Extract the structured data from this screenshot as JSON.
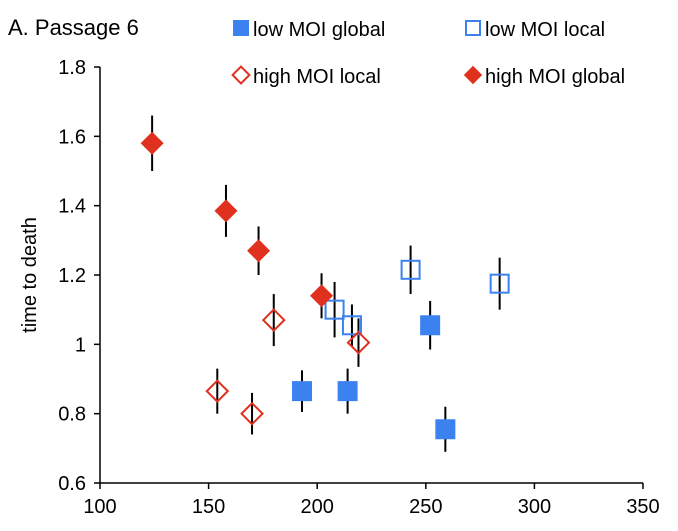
{
  "chart_data": {
    "type": "scatter",
    "title": "A.  Passage 6",
    "xlabel": "",
    "ylabel": "time to death",
    "xlim": [
      100,
      350
    ],
    "ylim": [
      0.6,
      1.8
    ],
    "xticks": [
      "100",
      "150",
      "200",
      "250",
      "300",
      "350"
    ],
    "yticks": [
      "0.6",
      "0.8",
      "1",
      "1.2",
      "1.4",
      "1.6",
      "1.8"
    ],
    "grid": false,
    "legend_position": "top",
    "series": [
      {
        "name": "low MOI global",
        "marker": "square-filled",
        "color": "#3b82f0",
        "points": [
          {
            "x": 193,
            "y": 0.865,
            "err": 0.06
          },
          {
            "x": 214,
            "y": 0.865,
            "err": 0.065
          },
          {
            "x": 252,
            "y": 1.055,
            "err": 0.07
          },
          {
            "x": 259,
            "y": 0.755,
            "err": 0.065
          }
        ]
      },
      {
        "name": "low MOI local",
        "marker": "square-open",
        "color": "#3b82f0",
        "points": [
          {
            "x": 208,
            "y": 1.1,
            "err": 0.08
          },
          {
            "x": 216,
            "y": 1.055,
            "err": 0.06
          },
          {
            "x": 243,
            "y": 1.215,
            "err": 0.07
          },
          {
            "x": 284,
            "y": 1.175,
            "err": 0.075
          }
        ]
      },
      {
        "name": "high MOI local",
        "marker": "diamond-open",
        "color": "#e0301e",
        "points": [
          {
            "x": 154,
            "y": 0.865,
            "err": 0.065
          },
          {
            "x": 170,
            "y": 0.8,
            "err": 0.06
          },
          {
            "x": 180,
            "y": 1.07,
            "err": 0.075
          },
          {
            "x": 219,
            "y": 1.005,
            "err": 0.07
          }
        ]
      },
      {
        "name": "high MOI global",
        "marker": "diamond-filled",
        "color": "#e0301e",
        "points": [
          {
            "x": 124,
            "y": 1.58,
            "err": 0.08
          },
          {
            "x": 158,
            "y": 1.385,
            "err": 0.075
          },
          {
            "x": 173,
            "y": 1.27,
            "err": 0.07
          },
          {
            "x": 202,
            "y": 1.14,
            "err": 0.065
          }
        ]
      }
    ],
    "legend": [
      {
        "label": "low MOI global",
        "marker": "square-filled",
        "color": "#3b82f0"
      },
      {
        "label": "low MOI local",
        "marker": "square-open",
        "color": "#3b82f0"
      },
      {
        "label": "high MOI local",
        "marker": "diamond-open",
        "color": "#e0301e"
      },
      {
        "label": "high MOI global",
        "marker": "diamond-filled",
        "color": "#e0301e"
      }
    ]
  }
}
